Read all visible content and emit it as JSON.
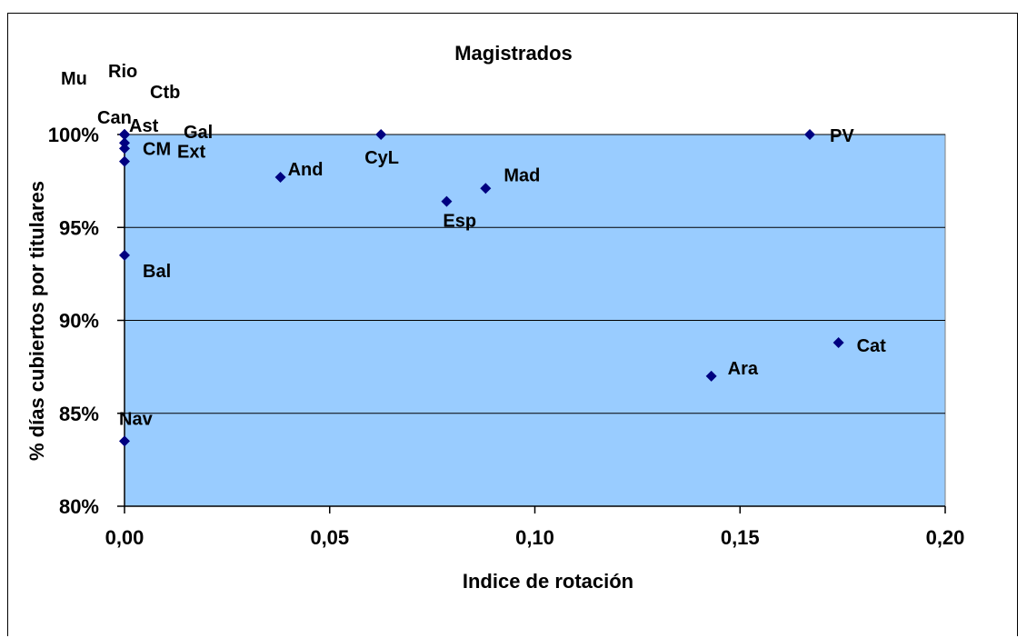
{
  "chart_data": {
    "type": "scatter",
    "title": "Magistrados",
    "xlabel": "Indice de rotación",
    "ylabel": "% días cubiertos por titulares",
    "xlim": [
      0,
      0.2
    ],
    "ylim": [
      0.8,
      1.0
    ],
    "xticks": [
      "0,00",
      "0,05",
      "0,10",
      "0,15",
      "0,20"
    ],
    "yticks": [
      "80%",
      "85%",
      "90%",
      "95%",
      "100%"
    ],
    "grid": true,
    "legend": "none",
    "colors": {
      "plot_background": "#99ccff",
      "marker": "#000080",
      "gridline": "#000000"
    },
    "points": [
      {
        "label": "Mu",
        "x": 0.0,
        "y": 1.0
      },
      {
        "label": "Rio",
        "x": 0.0,
        "y": 1.0
      },
      {
        "label": "Ctb",
        "x": 0.0,
        "y": 1.0
      },
      {
        "label": "Can",
        "x": 0.0,
        "y": 1.0
      },
      {
        "label": "Ast",
        "x": 0.0,
        "y": 1.0
      },
      {
        "label": "Gal",
        "x": 0.0,
        "y": 0.9955
      },
      {
        "label": "Ext",
        "x": 0.0,
        "y": 0.9925
      },
      {
        "label": "CM",
        "x": 0.0,
        "y": 0.9855
      },
      {
        "label": "PV",
        "x": 0.167,
        "y": 1.0
      },
      {
        "label": "CyL",
        "x": 0.0625,
        "y": 1.0
      },
      {
        "label": "And",
        "x": 0.038,
        "y": 0.977
      },
      {
        "label": "Mad",
        "x": 0.088,
        "y": 0.971
      },
      {
        "label": "Esp",
        "x": 0.0785,
        "y": 0.964
      },
      {
        "label": "Bal",
        "x": 0.0,
        "y": 0.935
      },
      {
        "label": "Cat",
        "x": 0.174,
        "y": 0.888
      },
      {
        "label": "Ara",
        "x": 0.143,
        "y": 0.87
      },
      {
        "label": "Nav",
        "x": 0.0,
        "y": 0.835
      }
    ]
  }
}
